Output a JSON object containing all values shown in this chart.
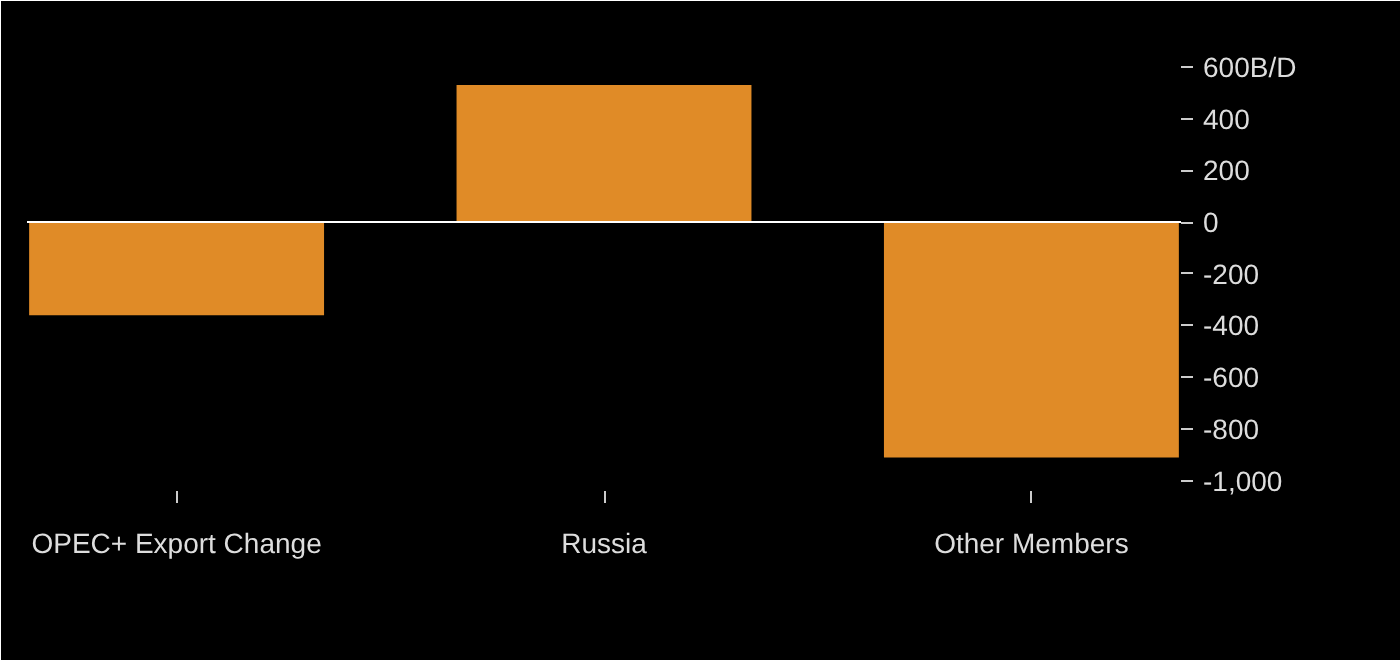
{
  "chart_data": {
    "type": "bar",
    "categories": [
      "OPEC+ Export Change",
      "Russia",
      "Other Members"
    ],
    "values": [
      -360,
      530,
      -910
    ],
    "color": "#e08b27",
    "ylim": [
      -1040,
      700
    ],
    "yticks": [
      {
        "value": 600,
        "label": "600B/D"
      },
      400,
      200,
      0,
      {
        "value": -200,
        "label": "-200"
      },
      {
        "value": -400,
        "label": "-400"
      },
      {
        "value": -600,
        "label": "-600"
      },
      {
        "value": -800,
        "label": "-800"
      },
      {
        "value": -1000,
        "label": "-1,000"
      }
    ],
    "ref_lines": [
      {
        "axis": "y",
        "value": 0,
        "color": "#ffffff"
      }
    ],
    "grid": false
  }
}
